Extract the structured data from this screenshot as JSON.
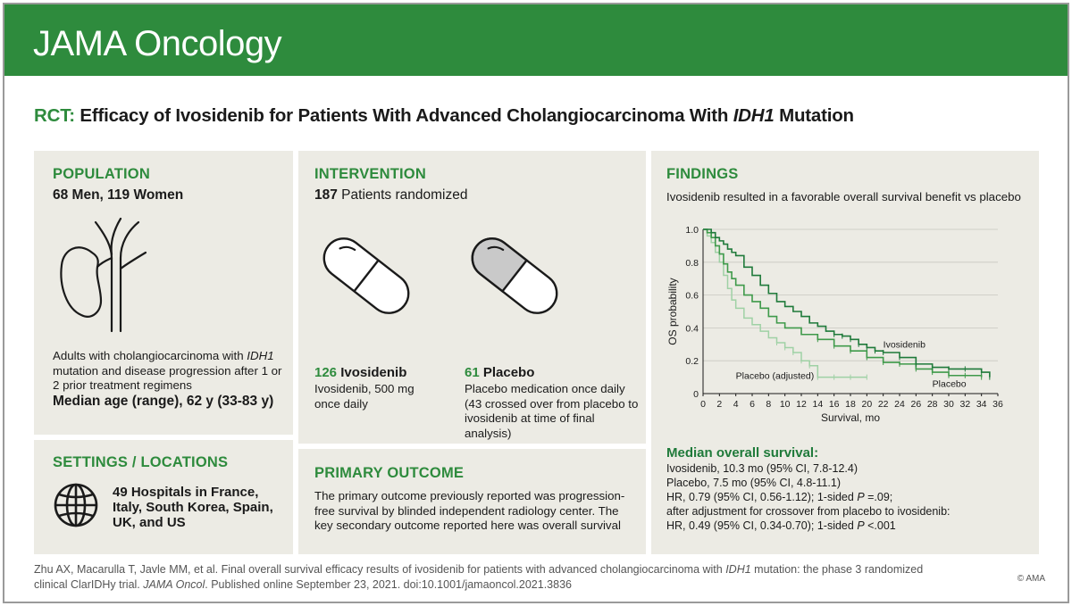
{
  "header": {
    "journal": "JAMA Oncology"
  },
  "title": {
    "prefix": "RCT:",
    "main": " Efficacy of Ivosidenib for Patients With Advanced Cholangiocarcinoma With ",
    "gene": "IDH1",
    "suffix": " Mutation"
  },
  "population": {
    "heading": "POPULATION",
    "subtitle": "68 Men, 119 Women",
    "icon": "bile-duct-gallbladder-icon",
    "desc_prefix": "Adults with cholangiocarcinoma with ",
    "desc_gene": "IDH1",
    "desc_suffix": " mutation and disease progression after 1 or 2 prior treatment regimens",
    "age": "Median age (range), 62 y (33-83 y)"
  },
  "settings": {
    "heading": "SETTINGS / LOCATIONS",
    "icon": "globe-icon",
    "text": "49 Hospitals in France, Italy, South Korea, Spain, UK, and US"
  },
  "intervention": {
    "heading": "INTERVENTION",
    "count": "187",
    "count_label": " Patients randomized",
    "arm1": {
      "count": "126",
      "name": "Ivosidenib",
      "desc": "Ivosidenib, 500 mg once daily",
      "icon": "pill-icon"
    },
    "arm2": {
      "count": "61",
      "name": "Placebo",
      "desc": "Placebo medication once daily (43 crossed over from placebo to ivosidenib at time of final analysis)",
      "icon": "pill-icon"
    }
  },
  "primary_outcome": {
    "heading": "PRIMARY OUTCOME",
    "text": "The primary outcome previously reported was progression-free survival by blinded independent radiology center. The key secondary outcome reported here was overall survival"
  },
  "findings": {
    "heading": "FINDINGS",
    "summary": "Ivosidenib resulted in a favorable overall survival benefit vs placebo",
    "median_heading": "Median overall survival:",
    "lines": [
      "Ivosidenib, 10.3 mo (95% CI, 7.8-12.4)",
      "Placebo, 7.5 mo (95% CI, 4.8-11.1)"
    ],
    "hr1_prefix": "HR, 0.79 (95% CI, 0.56-1.12); 1-sided ",
    "hr1_p": "P",
    "hr1_suffix": " =.09;",
    "adjust_line": "after adjustment for crossover from placebo to ivosidenib:",
    "hr2_prefix": "HR, 0.49 (95% CI, 0.34-0.70); 1-sided ",
    "hr2_p": "P",
    "hr2_suffix": " <.001"
  },
  "chart_data": {
    "type": "line",
    "xlabel": "Survival, mo",
    "ylabel": "OS probability",
    "xlim": [
      0,
      36
    ],
    "ylim": [
      0,
      1
    ],
    "xticks": [
      "0",
      "2",
      "4",
      "6",
      "8",
      "10",
      "12",
      "14",
      "16",
      "18",
      "20",
      "22",
      "24",
      "26",
      "28",
      "30",
      "32",
      "34",
      "36"
    ],
    "yticks": [
      "0",
      "0.2",
      "0.4",
      "0.6",
      "0.8",
      "1.0"
    ],
    "colors": {
      "ivosidenib": "#1f7a3a",
      "placebo": "#3f9a4a",
      "adjusted": "#9fd1a5"
    },
    "series": [
      {
        "name": "Ivosidenib",
        "x": [
          0,
          0.5,
          1,
          1.5,
          2,
          2.5,
          3,
          3.5,
          4,
          5,
          6,
          7,
          8,
          9,
          10,
          11,
          12,
          13,
          14,
          15,
          16,
          17,
          18,
          19,
          20,
          21,
          22,
          24,
          26,
          28,
          30,
          32,
          34,
          35
        ],
        "y": [
          1.0,
          1.0,
          0.98,
          0.95,
          0.93,
          0.91,
          0.88,
          0.86,
          0.84,
          0.77,
          0.72,
          0.66,
          0.61,
          0.56,
          0.53,
          0.5,
          0.47,
          0.43,
          0.41,
          0.38,
          0.36,
          0.35,
          0.33,
          0.3,
          0.28,
          0.26,
          0.25,
          0.22,
          0.18,
          0.16,
          0.15,
          0.15,
          0.13,
          0.1
        ]
      },
      {
        "name": "Placebo",
        "x": [
          0,
          0.5,
          1,
          1.5,
          2,
          2.5,
          3,
          3.5,
          4,
          5,
          6,
          7,
          8,
          9,
          10,
          12,
          14,
          16,
          18,
          20,
          22,
          24,
          26,
          28,
          30,
          32,
          34
        ],
        "y": [
          1.0,
          0.98,
          0.95,
          0.9,
          0.85,
          0.79,
          0.74,
          0.7,
          0.66,
          0.6,
          0.56,
          0.52,
          0.47,
          0.43,
          0.4,
          0.36,
          0.33,
          0.29,
          0.26,
          0.22,
          0.19,
          0.18,
          0.15,
          0.13,
          0.11,
          0.11,
          0.1
        ]
      },
      {
        "name": "Placebo (adjusted)",
        "x": [
          0,
          0.5,
          1,
          1.5,
          2,
          2.5,
          3,
          3.5,
          4,
          5,
          6,
          7,
          8,
          9,
          10,
          11,
          12,
          13,
          14,
          16,
          18,
          20
        ],
        "y": [
          1.0,
          0.96,
          0.92,
          0.86,
          0.8,
          0.72,
          0.64,
          0.57,
          0.52,
          0.46,
          0.42,
          0.38,
          0.34,
          0.31,
          0.28,
          0.25,
          0.2,
          0.17,
          0.1,
          0.1,
          0.1,
          0.1
        ]
      }
    ],
    "labels": {
      "ivosidenib": "Ivosidenib",
      "placebo": "Placebo",
      "adjusted": "Placebo (adjusted)"
    }
  },
  "citation": {
    "part1": "Zhu AX, Macarulla T, Javle MM, et al. Final overall survival efficacy results of ivosidenib for patients with advanced cholangiocarcinoma with ",
    "gene": "IDH1",
    "part2": " mutation: the phase 3 randomized clinical ClarIDHy trial. ",
    "journal": "JAMA Oncol",
    "part3": ". Published online September 23, 2021. doi:10.1001/jamaoncol.2021.3836"
  },
  "copyright": "© AMA"
}
